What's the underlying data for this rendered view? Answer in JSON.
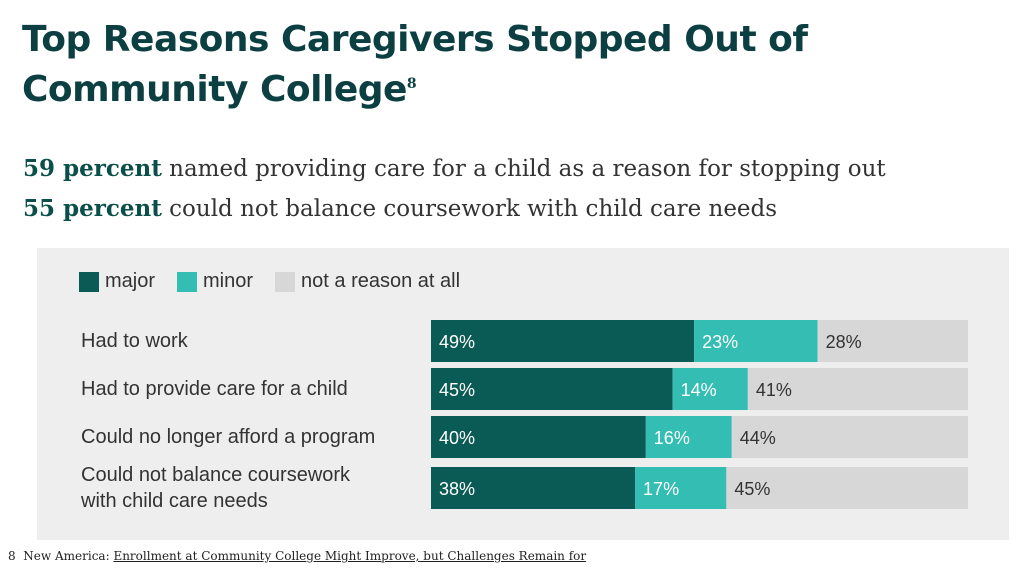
{
  "title": "Top Reasons Caregivers Stopped Out of Community College",
  "title_footnote_ref": "8",
  "stats": [
    {
      "bold": "59 percent",
      "text": " named providing care for a child as a reason for stopping out"
    },
    {
      "bold": "55 percent",
      "text": " could not balance coursework with child care needs"
    }
  ],
  "footnote": {
    "number": "8",
    "source": "New America:",
    "link_text": "Enrollment at Community College Might Improve, but Challenges Remain for"
  },
  "chart_data": {
    "type": "bar",
    "orientation": "horizontal",
    "stacked": true,
    "categories": [
      "Had to work",
      "Had to provide care for a child",
      "Could no longer afford a program",
      "Could not balance coursework with child care needs"
    ],
    "category_lines": [
      [
        "Had to work"
      ],
      [
        "Had to provide care for a child"
      ],
      [
        "Could no longer afford a program"
      ],
      [
        "Could not balance coursework",
        "with child care needs"
      ]
    ],
    "series": [
      {
        "name": "major",
        "color": "#0a5a55",
        "values": [
          49,
          45,
          40,
          38
        ]
      },
      {
        "name": "minor",
        "color": "#33bdb3",
        "values": [
          23,
          14,
          16,
          17
        ]
      },
      {
        "name": "not a reason at all",
        "color": "#d7d7d7",
        "values": [
          28,
          41,
          44,
          45
        ]
      }
    ],
    "value_suffix": "%",
    "xlim": [
      0,
      100
    ],
    "legend_position": "top-left"
  }
}
